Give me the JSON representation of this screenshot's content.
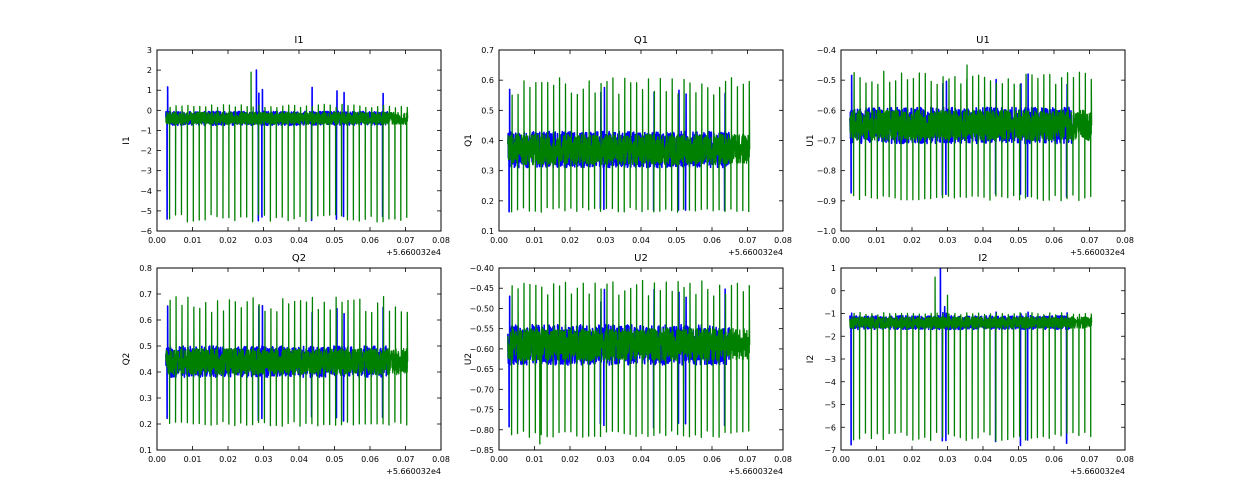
{
  "colors": {
    "blue": "#0000ff",
    "green": "#008000"
  },
  "chart_data": [
    {
      "type": "line",
      "title": "I1",
      "ylabel": "I1",
      "xlabel": "",
      "x_offset_label": "+5.660032e4",
      "xlim": [
        0.0,
        0.08
      ],
      "ylim": [
        -6,
        3
      ],
      "xticks": [
        "0.00",
        "0.01",
        "0.02",
        "0.03",
        "0.04",
        "0.05",
        "0.06",
        "0.07",
        "0.08"
      ],
      "yticks": [
        "3",
        "2",
        "1",
        "0",
        "−1",
        "−2",
        "−3",
        "−4",
        "−5",
        "−6"
      ],
      "grid": false,
      "series": [
        {
          "name": "blue",
          "color": "#0000ff",
          "x_range": [
            0.0025,
            0.065
          ],
          "baseline": -0.4,
          "spread": 0.35,
          "spike_low": -5.35,
          "spike_high": 1.2,
          "spikes": [
            0.0028,
            0.0285,
            0.0295,
            0.0435,
            0.0505,
            0.0525,
            0.0635
          ],
          "extra": [
            [
              0.028,
              2.0
            ],
            [
              0.0292,
              -0.5
            ]
          ]
        },
        {
          "name": "green",
          "color": "#008000",
          "x_range": [
            0.0025,
            0.0705
          ],
          "baseline": -0.4,
          "spread": 0.3,
          "spike_low": -5.35,
          "spike_high": 0.3,
          "period": 0.00167,
          "spike_start": 0.0035,
          "extra": [
            [
              0.0265,
              1.9
            ]
          ]
        }
      ]
    },
    {
      "type": "line",
      "title": "Q1",
      "ylabel": "Q1",
      "xlabel": "",
      "x_offset_label": "+5.660032e4",
      "xlim": [
        0.0,
        0.08
      ],
      "ylim": [
        0.1,
        0.7
      ],
      "xticks": [
        "0.00",
        "0.01",
        "0.02",
        "0.03",
        "0.04",
        "0.05",
        "0.06",
        "0.07",
        "0.08"
      ],
      "yticks": [
        "0.7",
        "0.6",
        "0.5",
        "0.4",
        "0.3",
        "0.2",
        "0.1"
      ],
      "grid": false,
      "series": [
        {
          "name": "blue",
          "color": "#0000ff",
          "x_range": [
            0.0025,
            0.065
          ],
          "baseline": 0.37,
          "spread": 0.06,
          "spike_low": 0.17,
          "spike_high": 0.58,
          "spikes": [
            0.0028,
            0.0285,
            0.0295,
            0.0435,
            0.0505,
            0.0525,
            0.0635
          ],
          "extra": []
        },
        {
          "name": "green",
          "color": "#008000",
          "x_range": [
            0.0025,
            0.0705
          ],
          "baseline": 0.37,
          "spread": 0.05,
          "spike_low": 0.17,
          "spike_high": 0.61,
          "period": 0.00167,
          "spike_start": 0.0035,
          "extra": []
        }
      ]
    },
    {
      "type": "line",
      "title": "U1",
      "ylabel": "U1",
      "xlabel": "",
      "x_offset_label": "+5.660032e4",
      "xlim": [
        0.0,
        0.08
      ],
      "ylim": [
        -1.0,
        -0.4
      ],
      "xticks": [
        "0.00",
        "0.01",
        "0.02",
        "0.03",
        "0.04",
        "0.05",
        "0.06",
        "0.07",
        "0.08"
      ],
      "yticks": [
        "−0.4",
        "−0.5",
        "−0.6",
        "−0.7",
        "−0.8",
        "−0.9",
        "−1.0"
      ],
      "grid": false,
      "series": [
        {
          "name": "blue",
          "color": "#0000ff",
          "x_range": [
            0.0025,
            0.065
          ],
          "baseline": -0.65,
          "spread": 0.06,
          "spike_low": -0.88,
          "spike_high": -0.47,
          "spikes": [
            0.0028,
            0.0285,
            0.0295,
            0.0435,
            0.0505,
            0.0525,
            0.0635
          ],
          "extra": []
        },
        {
          "name": "green",
          "color": "#008000",
          "x_range": [
            0.0025,
            0.0705
          ],
          "baseline": -0.65,
          "spread": 0.05,
          "spike_low": -0.89,
          "spike_high": -0.47,
          "period": 0.00167,
          "spike_start": 0.0035,
          "extra": [
            [
              0.0355,
              -0.45
            ]
          ]
        }
      ]
    },
    {
      "type": "line",
      "title": "Q2",
      "ylabel": "Q2",
      "xlabel": "",
      "x_offset_label": "+5.660032e4",
      "xlim": [
        0.0,
        0.08
      ],
      "ylim": [
        0.1,
        0.8
      ],
      "xticks": [
        "0.00",
        "0.01",
        "0.02",
        "0.03",
        "0.04",
        "0.05",
        "0.06",
        "0.07",
        "0.08"
      ],
      "yticks": [
        "0.8",
        "0.7",
        "0.6",
        "0.5",
        "0.4",
        "0.3",
        "0.2",
        "0.1"
      ],
      "grid": false,
      "series": [
        {
          "name": "blue",
          "color": "#0000ff",
          "x_range": [
            0.0025,
            0.065
          ],
          "baseline": 0.44,
          "spread": 0.06,
          "spike_low": 0.22,
          "spike_high": 0.68,
          "spikes": [
            0.0028,
            0.0285,
            0.0295,
            0.0435,
            0.0505,
            0.0525,
            0.0635
          ],
          "extra": []
        },
        {
          "name": "green",
          "color": "#008000",
          "x_range": [
            0.0025,
            0.0705
          ],
          "baseline": 0.44,
          "spread": 0.05,
          "spike_low": 0.2,
          "spike_high": 0.69,
          "period": 0.00167,
          "spike_start": 0.0035,
          "extra": []
        }
      ]
    },
    {
      "type": "line",
      "title": "U2",
      "ylabel": "U2",
      "xlabel": "",
      "x_offset_label": "+5.660032e4",
      "xlim": [
        0.0,
        0.08
      ],
      "ylim": [
        -0.85,
        -0.4
      ],
      "xticks": [
        "0.00",
        "0.01",
        "0.02",
        "0.03",
        "0.04",
        "0.05",
        "0.06",
        "0.07",
        "0.08"
      ],
      "yticks": [
        "−0.40",
        "−0.45",
        "−0.50",
        "−0.55",
        "−0.60",
        "−0.65",
        "−0.70",
        "−0.75",
        "−0.80",
        "−0.85"
      ],
      "grid": false,
      "series": [
        {
          "name": "blue",
          "color": "#0000ff",
          "x_range": [
            0.0025,
            0.065
          ],
          "baseline": -0.59,
          "spread": 0.05,
          "spike_low": -0.79,
          "spike_high": -0.45,
          "spikes": [
            0.0028,
            0.0285,
            0.0295,
            0.0435,
            0.0505,
            0.0525,
            0.0635
          ],
          "extra": []
        },
        {
          "name": "green",
          "color": "#008000",
          "x_range": [
            0.0025,
            0.0705
          ],
          "baseline": -0.59,
          "spread": 0.04,
          "spike_low": -0.81,
          "spike_high": -0.43,
          "period": 0.00167,
          "spike_start": 0.0035,
          "extra": [
            [
              0.0115,
              -0.835
            ]
          ]
        }
      ]
    },
    {
      "type": "line",
      "title": "I2",
      "ylabel": "I2",
      "xlabel": "",
      "x_offset_label": "+5.660032e4",
      "xlim": [
        0.0,
        0.08
      ],
      "ylim": [
        -7,
        1
      ],
      "xticks": [
        "0.00",
        "0.01",
        "0.02",
        "0.03",
        "0.04",
        "0.05",
        "0.06",
        "0.07",
        "0.08"
      ],
      "yticks": [
        "1",
        "0",
        "−1",
        "−2",
        "−3",
        "−4",
        "−5",
        "−6",
        "−7"
      ],
      "grid": false,
      "series": [
        {
          "name": "blue",
          "color": "#0000ff",
          "x_range": [
            0.0025,
            0.065
          ],
          "baseline": -1.4,
          "spread": 0.3,
          "spike_low": -6.6,
          "spike_high": -0.9,
          "spikes": [
            0.0028,
            0.0285,
            0.0295,
            0.0435,
            0.0505,
            0.0525,
            0.0635
          ],
          "extra": [
            [
              0.028,
              1.0
            ],
            [
              0.0292,
              -0.7
            ]
          ]
        },
        {
          "name": "green",
          "color": "#008000",
          "x_range": [
            0.0025,
            0.0705
          ],
          "baseline": -1.4,
          "spread": 0.25,
          "spike_low": -6.4,
          "spike_high": -0.95,
          "period": 0.00167,
          "spike_start": 0.0035,
          "extra": [
            [
              0.0265,
              0.6
            ],
            [
              0.03,
              -0.2
            ]
          ]
        }
      ]
    }
  ]
}
